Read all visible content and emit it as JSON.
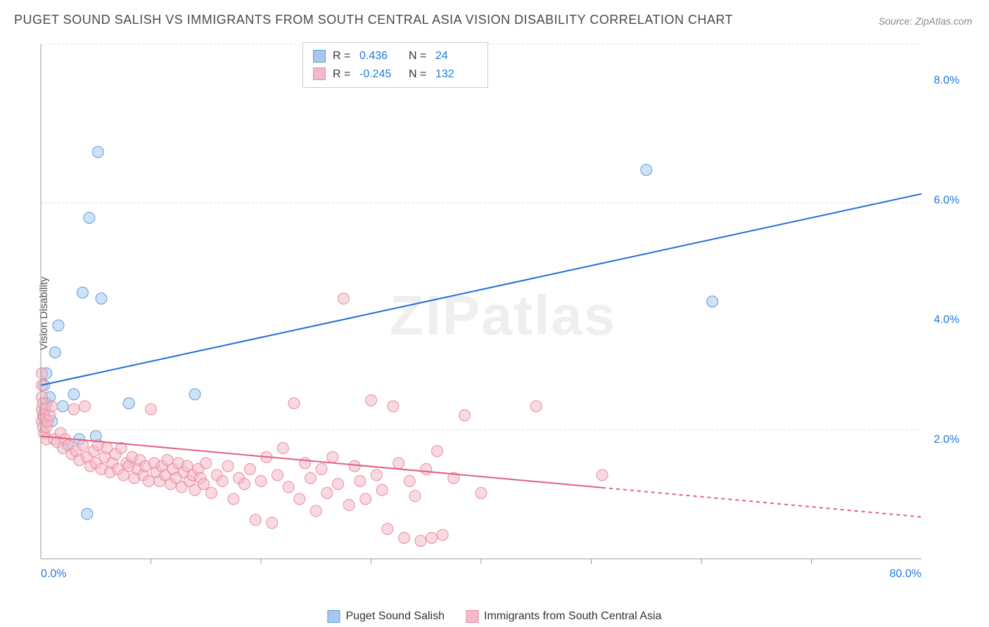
{
  "title": "PUGET SOUND SALISH VS IMMIGRANTS FROM SOUTH CENTRAL ASIA VISION DISABILITY CORRELATION CHART",
  "source": "Source: ZipAtlas.com",
  "ylabel": "Vision Disability",
  "watermark": "ZIPatlas",
  "chart": {
    "type": "scatter",
    "xlim": [
      0,
      80
    ],
    "ylim": [
      0,
      8.6
    ],
    "x_ticks_minor": [
      10,
      20,
      30,
      40,
      50,
      60,
      70
    ],
    "x_tick_labels": {
      "0": "0.0%",
      "80": "80.0%"
    },
    "y_gridlines": [
      2.15,
      5.95
    ],
    "y_tick_labels": {
      "2": "2.0%",
      "4": "4.0%",
      "6": "6.0%",
      "8": "8.0%"
    },
    "background_color": "#ffffff",
    "grid_color": "#dddddd",
    "axis_color": "#999999",
    "tick_label_color": "#2079d8",
    "marker_radius": 8,
    "marker_opacity": 0.55,
    "series": [
      {
        "name": "Puget Sound Salish",
        "color_fill": "#a7c8ec",
        "color_stroke": "#5f9cd9",
        "R": "0.436",
        "N": "24",
        "trend": {
          "x1": 0,
          "y1": 2.9,
          "x2": 80,
          "y2": 6.1,
          "solid_to_x": 80,
          "color": "#1e6fd6",
          "width": 2
        },
        "points": [
          [
            0.3,
            2.4
          ],
          [
            0.3,
            2.9
          ],
          [
            0.5,
            2.6
          ],
          [
            0.5,
            3.1
          ],
          [
            0.8,
            2.7
          ],
          [
            1.0,
            2.3
          ],
          [
            1.3,
            3.45
          ],
          [
            1.6,
            3.9
          ],
          [
            2.0,
            2.55
          ],
          [
            2.5,
            1.9
          ],
          [
            3.0,
            2.75
          ],
          [
            3.5,
            2.0
          ],
          [
            3.8,
            4.45
          ],
          [
            4.2,
            0.75
          ],
          [
            4.4,
            5.7
          ],
          [
            5.0,
            2.05
          ],
          [
            5.2,
            6.8
          ],
          [
            5.5,
            4.35
          ],
          [
            8.0,
            2.6
          ],
          [
            14.0,
            2.75
          ],
          [
            55.0,
            6.5
          ],
          [
            61.0,
            4.3
          ]
        ]
      },
      {
        "name": "Immigrants from South Central Asia",
        "color_fill": "#f4b9c7",
        "color_stroke": "#e98ba2",
        "R": "-0.245",
        "N": "132",
        "trend": {
          "x1": 0,
          "y1": 2.05,
          "x2": 80,
          "y2": 0.7,
          "solid_to_x": 51,
          "color": "#e0607f",
          "width": 2
        },
        "points": [
          [
            0.1,
            2.3
          ],
          [
            0.1,
            2.5
          ],
          [
            0.1,
            2.7
          ],
          [
            0.1,
            2.9
          ],
          [
            0.1,
            3.1
          ],
          [
            0.2,
            2.2
          ],
          [
            0.2,
            2.4
          ],
          [
            0.2,
            2.6
          ],
          [
            0.3,
            2.1
          ],
          [
            0.3,
            2.35
          ],
          [
            0.4,
            2.5
          ],
          [
            0.5,
            2.0
          ],
          [
            0.5,
            2.2
          ],
          [
            0.6,
            2.3
          ],
          [
            0.8,
            2.4
          ],
          [
            1.0,
            2.55
          ],
          [
            1.2,
            2.0
          ],
          [
            1.5,
            1.95
          ],
          [
            1.8,
            2.1
          ],
          [
            2.0,
            1.85
          ],
          [
            2.2,
            2.0
          ],
          [
            2.5,
            1.9
          ],
          [
            2.8,
            1.75
          ],
          [
            3.0,
            2.5
          ],
          [
            3.2,
            1.8
          ],
          [
            3.5,
            1.65
          ],
          [
            3.8,
            1.9
          ],
          [
            4.0,
            2.55
          ],
          [
            4.2,
            1.7
          ],
          [
            4.5,
            1.55
          ],
          [
            4.8,
            1.8
          ],
          [
            5.0,
            1.6
          ],
          [
            5.2,
            1.9
          ],
          [
            5.5,
            1.5
          ],
          [
            5.8,
            1.7
          ],
          [
            6.0,
            1.85
          ],
          [
            6.3,
            1.45
          ],
          [
            6.5,
            1.6
          ],
          [
            6.8,
            1.75
          ],
          [
            7.0,
            1.5
          ],
          [
            7.3,
            1.85
          ],
          [
            7.5,
            1.4
          ],
          [
            7.8,
            1.6
          ],
          [
            8.0,
            1.55
          ],
          [
            8.3,
            1.7
          ],
          [
            8.5,
            1.35
          ],
          [
            8.8,
            1.5
          ],
          [
            9.0,
            1.65
          ],
          [
            9.3,
            1.4
          ],
          [
            9.5,
            1.55
          ],
          [
            9.8,
            1.3
          ],
          [
            10.0,
            2.5
          ],
          [
            10.3,
            1.6
          ],
          [
            10.5,
            1.45
          ],
          [
            10.8,
            1.3
          ],
          [
            11.0,
            1.55
          ],
          [
            11.3,
            1.4
          ],
          [
            11.5,
            1.65
          ],
          [
            11.8,
            1.25
          ],
          [
            12.0,
            1.5
          ],
          [
            12.3,
            1.35
          ],
          [
            12.5,
            1.6
          ],
          [
            12.8,
            1.2
          ],
          [
            13.0,
            1.45
          ],
          [
            13.3,
            1.55
          ],
          [
            13.5,
            1.3
          ],
          [
            13.8,
            1.4
          ],
          [
            14.0,
            1.15
          ],
          [
            14.3,
            1.5
          ],
          [
            14.5,
            1.35
          ],
          [
            14.8,
            1.25
          ],
          [
            15.0,
            1.6
          ],
          [
            15.5,
            1.1
          ],
          [
            16.0,
            1.4
          ],
          [
            16.5,
            1.3
          ],
          [
            17.0,
            1.55
          ],
          [
            17.5,
            1.0
          ],
          [
            18.0,
            1.35
          ],
          [
            18.5,
            1.25
          ],
          [
            19.0,
            1.5
          ],
          [
            19.5,
            0.65
          ],
          [
            20.0,
            1.3
          ],
          [
            20.5,
            1.7
          ],
          [
            21.0,
            0.6
          ],
          [
            21.5,
            1.4
          ],
          [
            22.0,
            1.85
          ],
          [
            22.5,
            1.2
          ],
          [
            23.0,
            2.6
          ],
          [
            23.5,
            1.0
          ],
          [
            24.0,
            1.6
          ],
          [
            24.5,
            1.35
          ],
          [
            25.0,
            0.8
          ],
          [
            25.5,
            1.5
          ],
          [
            26.0,
            1.1
          ],
          [
            26.5,
            1.7
          ],
          [
            27.0,
            1.25
          ],
          [
            27.5,
            4.35
          ],
          [
            28.0,
            0.9
          ],
          [
            28.5,
            1.55
          ],
          [
            29.0,
            1.3
          ],
          [
            29.5,
            1.0
          ],
          [
            30.0,
            2.65
          ],
          [
            30.5,
            1.4
          ],
          [
            31.0,
            1.15
          ],
          [
            31.5,
            0.5
          ],
          [
            32.0,
            2.55
          ],
          [
            32.5,
            1.6
          ],
          [
            33.0,
            0.35
          ],
          [
            33.5,
            1.3
          ],
          [
            34.0,
            1.05
          ],
          [
            34.5,
            0.3
          ],
          [
            35.0,
            1.5
          ],
          [
            35.5,
            0.35
          ],
          [
            36.0,
            1.8
          ],
          [
            36.5,
            0.4
          ],
          [
            37.5,
            1.35
          ],
          [
            38.5,
            2.4
          ],
          [
            40.0,
            1.1
          ],
          [
            45.0,
            2.55
          ],
          [
            51.0,
            1.4
          ]
        ]
      }
    ]
  },
  "stats_box": {
    "pos": "top-center"
  },
  "bottom_legend": [
    "Puget Sound Salish",
    "Immigrants from South Central Asia"
  ]
}
